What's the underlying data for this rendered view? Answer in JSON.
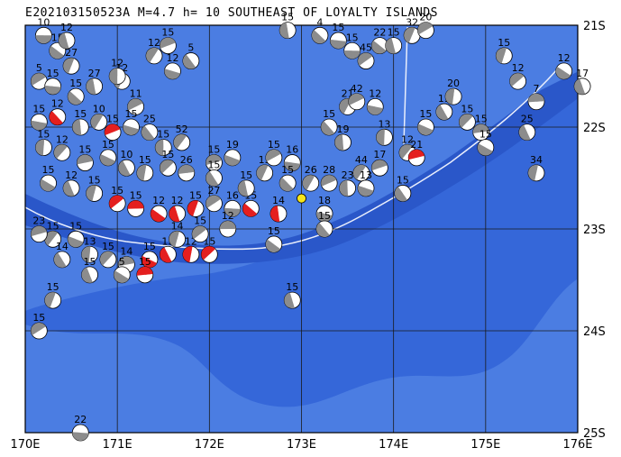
{
  "title": "E202103150523A  M=4.7  h= 10  SOUTHEAST OF LOYALTY ISLANDS",
  "colors": {
    "ocean_deep": "#3567d9",
    "ocean_mid": "#4b7de2",
    "ocean_shallow": "#6d96e8",
    "trench": "#2a57c9",
    "plate_boundary": "#e9eefc",
    "grid": "#1a1a1a",
    "beachball_gray": "#8c8c8c",
    "beachball_red": "#e41f1f",
    "target_event": "#f5e51b"
  },
  "map": {
    "lon_range": [
      170,
      176
    ],
    "lat_range": [
      -25,
      -21
    ],
    "x_ticks": [
      "170E",
      "171E",
      "172E",
      "173E",
      "174E",
      "175E",
      "176E"
    ],
    "y_ticks": [
      "21S",
      "22S",
      "23S",
      "24S",
      "25S"
    ]
  },
  "events": [
    {
      "lon": 170.2,
      "lat": -21.1,
      "depth": "10",
      "fill": "gray"
    },
    {
      "lon": 170.35,
      "lat": -21.25,
      "depth": "15",
      "fill": "gray"
    },
    {
      "lon": 170.45,
      "lat": -21.15,
      "depth": "12",
      "fill": "gray"
    },
    {
      "lon": 170.5,
      "lat": -21.4,
      "depth": "27",
      "fill": "gray"
    },
    {
      "lon": 170.15,
      "lat": -21.55,
      "depth": "5",
      "fill": "gray"
    },
    {
      "lon": 170.3,
      "lat": -21.6,
      "depth": "15",
      "fill": "gray"
    },
    {
      "lon": 170.55,
      "lat": -21.7,
      "depth": "15",
      "fill": "gray"
    },
    {
      "lon": 170.75,
      "lat": -21.6,
      "depth": "27",
      "fill": "gray"
    },
    {
      "lon": 171.05,
      "lat": -21.55,
      "depth": "12",
      "fill": "gray"
    },
    {
      "lon": 171.2,
      "lat": -21.8,
      "depth": "11",
      "fill": "gray"
    },
    {
      "lon": 170.15,
      "lat": -21.95,
      "depth": "15",
      "fill": "gray"
    },
    {
      "lon": 170.35,
      "lat": -21.9,
      "depth": "12",
      "fill": "red"
    },
    {
      "lon": 170.6,
      "lat": -22.0,
      "depth": "15",
      "fill": "gray"
    },
    {
      "lon": 170.8,
      "lat": -21.95,
      "depth": "10",
      "fill": "gray"
    },
    {
      "lon": 170.95,
      "lat": -22.05,
      "depth": "15",
      "fill": "red"
    },
    {
      "lon": 171.15,
      "lat": -22.0,
      "depth": "15",
      "fill": "gray"
    },
    {
      "lon": 171.35,
      "lat": -22.05,
      "depth": "25",
      "fill": "gray"
    },
    {
      "lon": 171.5,
      "lat": -22.2,
      "depth": "15",
      "fill": "gray"
    },
    {
      "lon": 171.7,
      "lat": -22.15,
      "depth": "52",
      "fill": "gray"
    },
    {
      "lon": 172.05,
      "lat": -22.35,
      "depth": "15",
      "fill": "gray"
    },
    {
      "lon": 172.25,
      "lat": -22.3,
      "depth": "19",
      "fill": "gray"
    },
    {
      "lon": 172.05,
      "lat": -22.5,
      "depth": "15",
      "fill": "gray"
    },
    {
      "lon": 170.2,
      "lat": -22.2,
      "depth": "15",
      "fill": "gray"
    },
    {
      "lon": 170.4,
      "lat": -22.25,
      "depth": "12",
      "fill": "gray"
    },
    {
      "lon": 170.65,
      "lat": -22.35,
      "depth": "15",
      "fill": "gray"
    },
    {
      "lon": 170.9,
      "lat": -22.3,
      "depth": "15",
      "fill": "gray"
    },
    {
      "lon": 171.1,
      "lat": -22.4,
      "depth": "10",
      "fill": "gray"
    },
    {
      "lon": 171.3,
      "lat": -22.45,
      "depth": "15",
      "fill": "gray"
    },
    {
      "lon": 171.55,
      "lat": -22.4,
      "depth": "15",
      "fill": "gray"
    },
    {
      "lon": 171.75,
      "lat": -22.45,
      "depth": "26",
      "fill": "gray"
    },
    {
      "lon": 170.25,
      "lat": -22.55,
      "depth": "15",
      "fill": "gray"
    },
    {
      "lon": 170.5,
      "lat": -22.6,
      "depth": "12",
      "fill": "gray"
    },
    {
      "lon": 170.75,
      "lat": -22.65,
      "depth": "15",
      "fill": "gray"
    },
    {
      "lon": 171.0,
      "lat": -22.75,
      "depth": "15",
      "fill": "red"
    },
    {
      "lon": 171.2,
      "lat": -22.8,
      "depth": "15",
      "fill": "red"
    },
    {
      "lon": 171.45,
      "lat": -22.85,
      "depth": "12",
      "fill": "red"
    },
    {
      "lon": 171.65,
      "lat": -22.85,
      "depth": "12",
      "fill": "red"
    },
    {
      "lon": 171.85,
      "lat": -22.8,
      "depth": "15",
      "fill": "red"
    },
    {
      "lon": 172.05,
      "lat": -22.75,
      "depth": "27",
      "fill": "gray"
    },
    {
      "lon": 172.25,
      "lat": -22.8,
      "depth": "16",
      "fill": "gray"
    },
    {
      "lon": 172.45,
      "lat": -22.8,
      "depth": "15",
      "fill": "red"
    },
    {
      "lon": 172.4,
      "lat": -22.6,
      "depth": "15",
      "fill": "gray"
    },
    {
      "lon": 172.6,
      "lat": -22.45,
      "depth": "15",
      "fill": "gray"
    },
    {
      "lon": 172.7,
      "lat": -22.3,
      "depth": "15",
      "fill": "gray"
    },
    {
      "lon": 172.9,
      "lat": -22.35,
      "depth": "16",
      "fill": "gray"
    },
    {
      "lon": 172.85,
      "lat": -22.55,
      "depth": "15",
      "fill": "gray"
    },
    {
      "lon": 172.75,
      "lat": -22.85,
      "depth": "14",
      "fill": "red"
    },
    {
      "lon": 173.1,
      "lat": -22.55,
      "depth": "26",
      "fill": "gray"
    },
    {
      "lon": 173.3,
      "lat": -22.55,
      "depth": "28",
      "fill": "gray"
    },
    {
      "lon": 173.25,
      "lat": -22.85,
      "depth": "18",
      "fill": "gray"
    },
    {
      "lon": 173.25,
      "lat": -23.0,
      "depth": "15",
      "fill": "gray"
    },
    {
      "lon": 173.5,
      "lat": -22.6,
      "depth": "23",
      "fill": "gray"
    },
    {
      "lon": 173.65,
      "lat": -22.45,
      "depth": "44",
      "fill": "gray"
    },
    {
      "lon": 173.85,
      "lat": -22.4,
      "depth": "17",
      "fill": "gray"
    },
    {
      "lon": 173.7,
      "lat": -22.6,
      "depth": "13",
      "fill": "gray"
    },
    {
      "lon": 174.1,
      "lat": -22.65,
      "depth": "15",
      "fill": "gray"
    },
    {
      "lon": 173.9,
      "lat": -22.1,
      "depth": "13",
      "fill": "gray"
    },
    {
      "lon": 174.15,
      "lat": -22.25,
      "depth": "12",
      "fill": "gray"
    },
    {
      "lon": 174.25,
      "lat": -22.3,
      "depth": "21",
      "fill": "red"
    },
    {
      "lon": 174.35,
      "lat": -22.0,
      "depth": "15",
      "fill": "gray"
    },
    {
      "lon": 174.55,
      "lat": -21.85,
      "depth": "15",
      "fill": "gray"
    },
    {
      "lon": 174.65,
      "lat": -21.7,
      "depth": "20",
      "fill": "gray"
    },
    {
      "lon": 174.8,
      "lat": -21.95,
      "depth": "15",
      "fill": "gray"
    },
    {
      "lon": 174.95,
      "lat": -22.05,
      "depth": "15",
      "fill": "gray"
    },
    {
      "lon": 175.0,
      "lat": -22.2,
      "depth": "15",
      "fill": "gray"
    },
    {
      "lon": 175.45,
      "lat": -22.05,
      "depth": "25",
      "fill": "gray"
    },
    {
      "lon": 175.55,
      "lat": -22.45,
      "depth": "34",
      "fill": "gray"
    },
    {
      "lon": 175.35,
      "lat": -21.55,
      "depth": "12",
      "fill": "gray"
    },
    {
      "lon": 175.55,
      "lat": -21.75,
      "depth": "7",
      "fill": "gray"
    },
    {
      "lon": 175.85,
      "lat": -21.45,
      "depth": "12",
      "fill": "gray"
    },
    {
      "lon": 176.05,
      "lat": -21.6,
      "depth": "17",
      "fill": "gray"
    },
    {
      "lon": 175.2,
      "lat": -21.3,
      "depth": "15",
      "fill": "gray"
    },
    {
      "lon": 173.7,
      "lat": -21.35,
      "depth": "45",
      "fill": "gray"
    },
    {
      "lon": 173.55,
      "lat": -21.25,
      "depth": "15",
      "fill": "gray"
    },
    {
      "lon": 173.85,
      "lat": -21.2,
      "depth": "22",
      "fill": "gray"
    },
    {
      "lon": 174.0,
      "lat": -21.2,
      "depth": "15",
      "fill": "gray"
    },
    {
      "lon": 174.2,
      "lat": -21.1,
      "depth": "32",
      "fill": "gray"
    },
    {
      "lon": 174.35,
      "lat": -21.05,
      "depth": "20",
      "fill": "gray"
    },
    {
      "lon": 173.4,
      "lat": -21.15,
      "depth": "15",
      "fill": "gray"
    },
    {
      "lon": 173.2,
      "lat": -21.1,
      "depth": "4",
      "fill": "gray"
    },
    {
      "lon": 172.85,
      "lat": -21.05,
      "depth": "15",
      "fill": "gray"
    },
    {
      "lon": 173.5,
      "lat": -21.8,
      "depth": "21",
      "fill": "gray"
    },
    {
      "lon": 173.6,
      "lat": -21.75,
      "depth": "42",
      "fill": "gray"
    },
    {
      "lon": 173.8,
      "lat": -21.8,
      "depth": "12",
      "fill": "gray"
    },
    {
      "lon": 173.3,
      "lat": -22.0,
      "depth": "15",
      "fill": "gray"
    },
    {
      "lon": 173.45,
      "lat": -22.15,
      "depth": "19",
      "fill": "gray"
    },
    {
      "lon": 171.4,
      "lat": -21.3,
      "depth": "12",
      "fill": "gray"
    },
    {
      "lon": 171.55,
      "lat": -21.2,
      "depth": "15",
      "fill": "gray"
    },
    {
      "lon": 171.6,
      "lat": -21.45,
      "depth": "12",
      "fill": "gray"
    },
    {
      "lon": 171.8,
      "lat": -21.35,
      "depth": "5",
      "fill": "gray"
    },
    {
      "lon": 171.0,
      "lat": -21.5,
      "depth": "12",
      "fill": "gray"
    },
    {
      "lon": 170.3,
      "lat": -23.1,
      "depth": "15",
      "fill": "gray"
    },
    {
      "lon": 170.15,
      "lat": -23.05,
      "depth": "23",
      "fill": "gray"
    },
    {
      "lon": 170.55,
      "lat": -23.1,
      "depth": "15",
      "fill": "gray"
    },
    {
      "lon": 170.4,
      "lat": -23.3,
      "depth": "14",
      "fill": "gray"
    },
    {
      "lon": 170.7,
      "lat": -23.25,
      "depth": "13",
      "fill": "gray"
    },
    {
      "lon": 170.9,
      "lat": -23.3,
      "depth": "15",
      "fill": "gray"
    },
    {
      "lon": 171.1,
      "lat": -23.35,
      "depth": "14",
      "fill": "gray"
    },
    {
      "lon": 171.35,
      "lat": -23.3,
      "depth": "15",
      "fill": "red"
    },
    {
      "lon": 171.55,
      "lat": -23.25,
      "depth": "15",
      "fill": "red"
    },
    {
      "lon": 171.8,
      "lat": -23.25,
      "depth": "12",
      "fill": "red"
    },
    {
      "lon": 172.0,
      "lat": -23.25,
      "depth": "15",
      "fill": "red"
    },
    {
      "lon": 171.3,
      "lat": -23.45,
      "depth": "15",
      "fill": "red"
    },
    {
      "lon": 171.05,
      "lat": -23.45,
      "depth": "5",
      "fill": "gray"
    },
    {
      "lon": 170.7,
      "lat": -23.45,
      "depth": "15",
      "fill": "gray"
    },
    {
      "lon": 171.65,
      "lat": -23.1,
      "depth": "14",
      "fill": "gray"
    },
    {
      "lon": 171.9,
      "lat": -23.05,
      "depth": "15",
      "fill": "gray"
    },
    {
      "lon": 172.2,
      "lat": -23.0,
      "depth": "12",
      "fill": "gray"
    },
    {
      "lon": 172.7,
      "lat": -23.15,
      "depth": "15",
      "fill": "gray"
    },
    {
      "lon": 172.9,
      "lat": -23.7,
      "depth": "15",
      "fill": "gray"
    },
    {
      "lon": 170.3,
      "lat": -23.7,
      "depth": "15",
      "fill": "gray"
    },
    {
      "lon": 170.15,
      "lat": -24.0,
      "depth": "15",
      "fill": "gray"
    },
    {
      "lon": 170.6,
      "lat": -25.0,
      "depth": "22",
      "fill": "gray"
    }
  ],
  "target_event": {
    "lon": 173.0,
    "lat": -22.7
  }
}
